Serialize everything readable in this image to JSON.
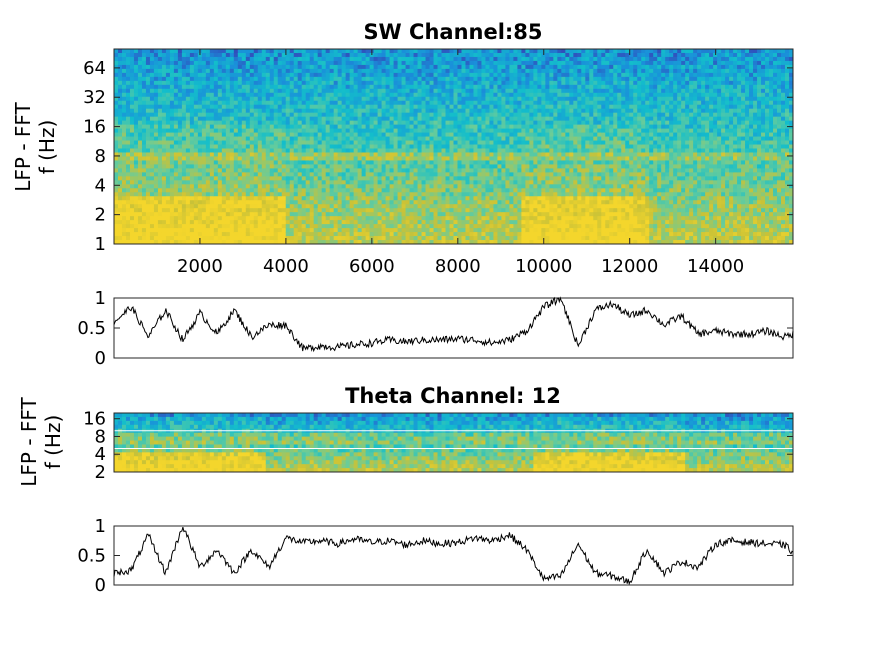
{
  "chart_data": [
    {
      "type": "heatmap",
      "title": "SW Channel:85",
      "ylabel_line1": "LFP - FFT",
      "ylabel_line2": "f (Hz)",
      "y_scale": "log2",
      "yticks": [
        "1",
        "2",
        "4",
        "8",
        "16",
        "32",
        "64"
      ],
      "yticks_values": [
        1,
        2,
        4,
        8,
        16,
        32,
        64
      ],
      "ylim": [
        1,
        100
      ],
      "xticks": [
        "2000",
        "4000",
        "6000",
        "8000",
        "10000",
        "12000",
        "14000"
      ],
      "xticks_values": [
        2000,
        4000,
        6000,
        8000,
        10000,
        12000,
        14000
      ],
      "xlim": [
        0,
        15800
      ],
      "colormap": [
        "#3e26a8",
        "#1a8fda",
        "#13becb",
        "#69cc9a",
        "#c9c237",
        "#f4d62c"
      ],
      "high_power_bands_hz": [
        [
          1,
          3
        ],
        [
          7,
          9
        ]
      ],
      "high_power_time_segments": [
        [
          0,
          4000
        ],
        [
          9500,
          12500
        ]
      ]
    },
    {
      "type": "line",
      "title": "",
      "yticks": [
        "0",
        "0.5",
        "1"
      ],
      "yticks_values": [
        0,
        0.5,
        1
      ],
      "ylim": [
        0,
        1
      ],
      "xlim": [
        0,
        15800
      ],
      "line_color": "#000000",
      "x": [
        0,
        400,
        800,
        1200,
        1600,
        2000,
        2400,
        2800,
        3200,
        3600,
        4000,
        4400,
        4800,
        5200,
        5600,
        6000,
        6400,
        6800,
        7200,
        7600,
        8000,
        8400,
        8800,
        9200,
        9600,
        10000,
        10400,
        10800,
        11200,
        11600,
        12000,
        12400,
        12800,
        13200,
        13600,
        14000,
        14400,
        14800,
        15200,
        15600,
        15800
      ],
      "y": [
        0.6,
        0.85,
        0.35,
        0.8,
        0.3,
        0.75,
        0.4,
        0.8,
        0.35,
        0.55,
        0.55,
        0.15,
        0.2,
        0.18,
        0.22,
        0.25,
        0.3,
        0.27,
        0.3,
        0.3,
        0.32,
        0.3,
        0.25,
        0.3,
        0.45,
        0.85,
        1.0,
        0.2,
        0.8,
        0.9,
        0.7,
        0.8,
        0.55,
        0.7,
        0.4,
        0.45,
        0.4,
        0.4,
        0.45,
        0.35,
        0.4
      ]
    },
    {
      "type": "heatmap",
      "title": "Theta Channel: 12",
      "ylabel_line1": "LFP - FFT",
      "ylabel_line2": "f (Hz)",
      "y_scale": "log2",
      "yticks": [
        "2",
        "4",
        "8",
        "16"
      ],
      "yticks_values": [
        2,
        4,
        8,
        16
      ],
      "ylim": [
        2,
        20
      ],
      "xlim": [
        0,
        15800
      ],
      "colormap": [
        "#3e26a8",
        "#1a8fda",
        "#13becb",
        "#69cc9a",
        "#c9c237",
        "#f4d62c"
      ],
      "band_lines_hz": [
        5,
        10
      ],
      "band_line_color": "#ffffff",
      "high_power_bands_hz": [
        [
          2,
          4
        ],
        [
          6,
          10
        ]
      ],
      "high_power_time_segments": [
        [
          0,
          3500
        ],
        [
          9800,
          13300
        ]
      ]
    },
    {
      "type": "line",
      "title": "",
      "yticks": [
        "0",
        "0.5",
        "1"
      ],
      "yticks_values": [
        0,
        0.5,
        1
      ],
      "ylim": [
        0,
        1
      ],
      "xlim": [
        0,
        15800
      ],
      "line_color": "#000000",
      "x": [
        0,
        400,
        800,
        1200,
        1600,
        2000,
        2400,
        2800,
        3200,
        3600,
        4000,
        4400,
        4800,
        5200,
        5600,
        6000,
        6400,
        6800,
        7200,
        7600,
        8000,
        8400,
        8800,
        9200,
        9600,
        10000,
        10400,
        10800,
        11200,
        11600,
        12000,
        12400,
        12800,
        13200,
        13600,
        14000,
        14400,
        14800,
        15200,
        15600,
        15800
      ],
      "y": [
        0.2,
        0.25,
        0.85,
        0.2,
        1.0,
        0.3,
        0.6,
        0.2,
        0.6,
        0.3,
        0.8,
        0.72,
        0.75,
        0.7,
        0.78,
        0.72,
        0.75,
        0.68,
        0.75,
        0.7,
        0.72,
        0.8,
        0.75,
        0.85,
        0.6,
        0.1,
        0.15,
        0.7,
        0.2,
        0.15,
        0.05,
        0.6,
        0.2,
        0.4,
        0.3,
        0.7,
        0.75,
        0.72,
        0.7,
        0.68,
        0.55
      ]
    }
  ]
}
